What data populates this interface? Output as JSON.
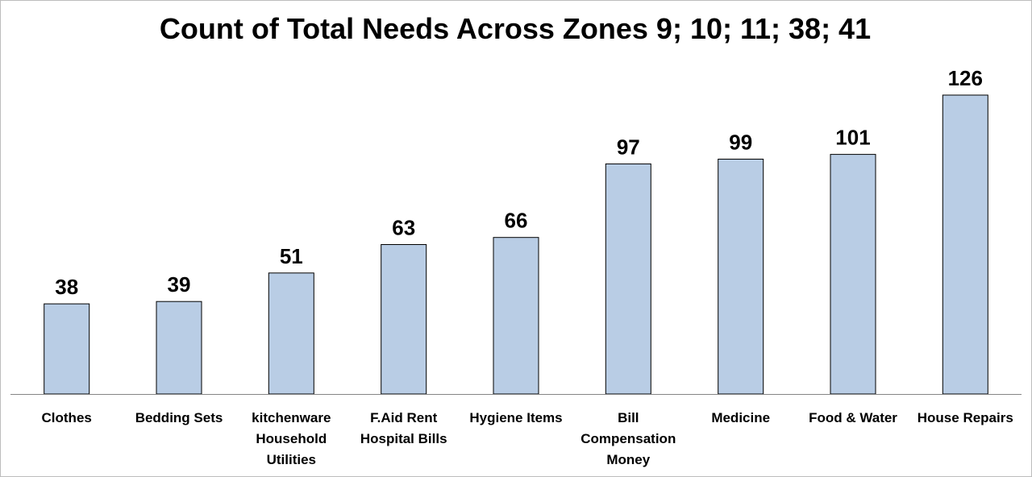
{
  "chart_data": {
    "type": "bar",
    "title": "Count of Total Needs Across Zones 9; 10; 11; 38; 41",
    "categories": [
      [
        "Clothes"
      ],
      [
        "Bedding Sets"
      ],
      [
        "kitchenware",
        "Household",
        "Utilities"
      ],
      [
        "F.Aid Rent",
        "Hospital Bills"
      ],
      [
        "Hygiene Items"
      ],
      [
        "Bill",
        "Compensation",
        "Money"
      ],
      [
        "Medicine"
      ],
      [
        "Food & Water"
      ],
      [
        "House Repairs"
      ]
    ],
    "values": [
      38,
      39,
      51,
      63,
      66,
      97,
      99,
      101,
      126
    ],
    "data_labels": [
      "38",
      "39",
      "51",
      "63",
      "66",
      "97",
      "99",
      "101",
      "126"
    ],
    "xlabel": "",
    "ylabel": "",
    "ylim": [
      0,
      126
    ],
    "grid": false,
    "legend": "none",
    "colors": {
      "bar_fill": "#b9cde5",
      "bar_stroke": "#000000",
      "axis": "#858585"
    }
  }
}
